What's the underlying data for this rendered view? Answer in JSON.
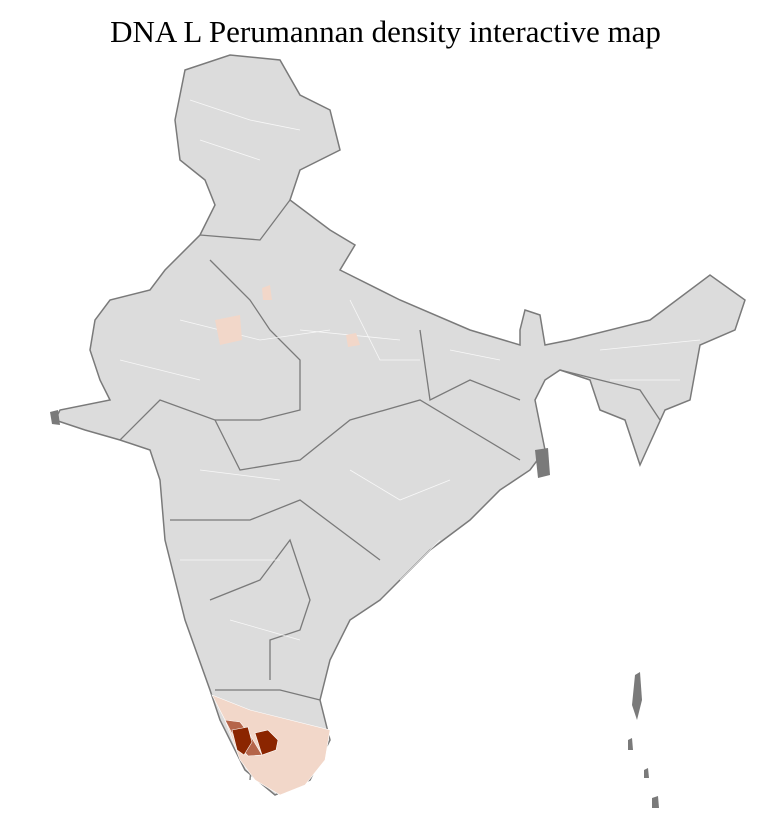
{
  "title": "DNA L Perumannan density interactive map",
  "colors": {
    "no_data": "#dcdcdc",
    "low": "#f2d7c9",
    "medium": "#b5654a",
    "high": "#8b2500",
    "state_border": "#7a7a7a",
    "district_border": "#ffffff"
  }
}
